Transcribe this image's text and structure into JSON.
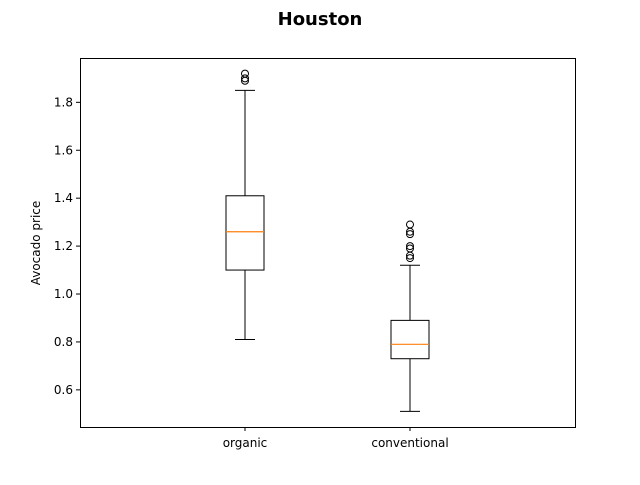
{
  "chart_data": {
    "type": "box",
    "title": "Houston",
    "xlabel": "",
    "ylabel": "Avocado price",
    "ylim": [
      0.445,
      1.985
    ],
    "yticks": [
      0.6,
      0.8,
      1.0,
      1.2,
      1.4,
      1.6,
      1.8
    ],
    "ytick_labels": [
      "0.6",
      "0.8",
      "1.0",
      "1.2",
      "1.4",
      "1.6",
      "1.8"
    ],
    "grid": false,
    "legend": false,
    "categories": [
      "organic",
      "conventional"
    ],
    "boxes": [
      {
        "category": "organic",
        "whisker_low": 0.81,
        "q1": 1.1,
        "median": 1.26,
        "q3": 1.41,
        "whisker_high": 1.85,
        "outliers": [
          1.89,
          1.9,
          1.92
        ]
      },
      {
        "category": "conventional",
        "whisker_low": 0.51,
        "q1": 0.73,
        "median": 0.79,
        "q3": 0.89,
        "whisker_high": 1.12,
        "outliers": [
          1.15,
          1.16,
          1.19,
          1.2,
          1.25,
          1.26,
          1.29
        ]
      }
    ],
    "colors": {
      "box": "#000000",
      "median": "#ff7f0e",
      "outlier": "#000000"
    }
  }
}
